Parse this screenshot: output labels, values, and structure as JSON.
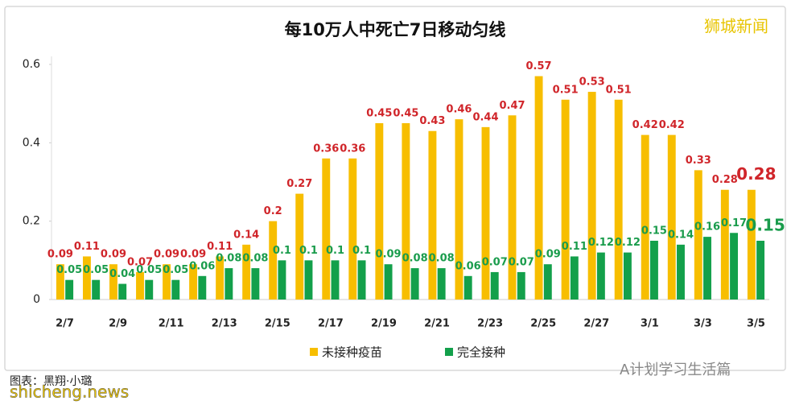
{
  "chart_data": {
    "type": "bar",
    "title": "每10万人中死亡7日移动匀线",
    "watermark": "狮城新闻",
    "credit": "图表：黑翔·小璐",
    "site": "shicheng.news",
    "source_tag": "A计划学习生活篇",
    "categories": [
      "2/7",
      null,
      "2/9",
      null,
      "2/11",
      null,
      "2/13",
      null,
      "2/15",
      null,
      "2/17",
      null,
      "2/19",
      null,
      "2/21",
      null,
      "2/23",
      null,
      "2/25",
      null,
      "2/27",
      null,
      "3/1",
      null,
      "3/3",
      null,
      "3/5"
    ],
    "series": [
      {
        "name": "未接种疫苗",
        "color": "#f7be00",
        "label_color": "#d0252a",
        "values": [
          0.09,
          0.11,
          0.09,
          0.07,
          0.09,
          0.09,
          0.11,
          0.14,
          0.2,
          0.27,
          0.36,
          0.36,
          0.45,
          0.45,
          0.43,
          0.46,
          0.44,
          0.47,
          0.57,
          0.51,
          0.53,
          0.51,
          0.42,
          0.42,
          0.33,
          0.28,
          0.28
        ]
      },
      {
        "name": "完全接种",
        "color": "#13a04b",
        "label_color": "#1a9c4c",
        "values": [
          0.05,
          0.05,
          0.04,
          0.05,
          0.05,
          0.06,
          0.08,
          0.08,
          0.1,
          0.1,
          0.1,
          0.1,
          0.09,
          0.08,
          0.08,
          0.06,
          0.07,
          0.07,
          0.09,
          0.11,
          0.12,
          0.12,
          0.15,
          0.14,
          0.16,
          0.17,
          0.15
        ]
      }
    ],
    "ylim": [
      0,
      0.6
    ],
    "yticks": [
      0,
      0.2,
      0.4,
      0.6
    ],
    "legend": "bottom"
  }
}
